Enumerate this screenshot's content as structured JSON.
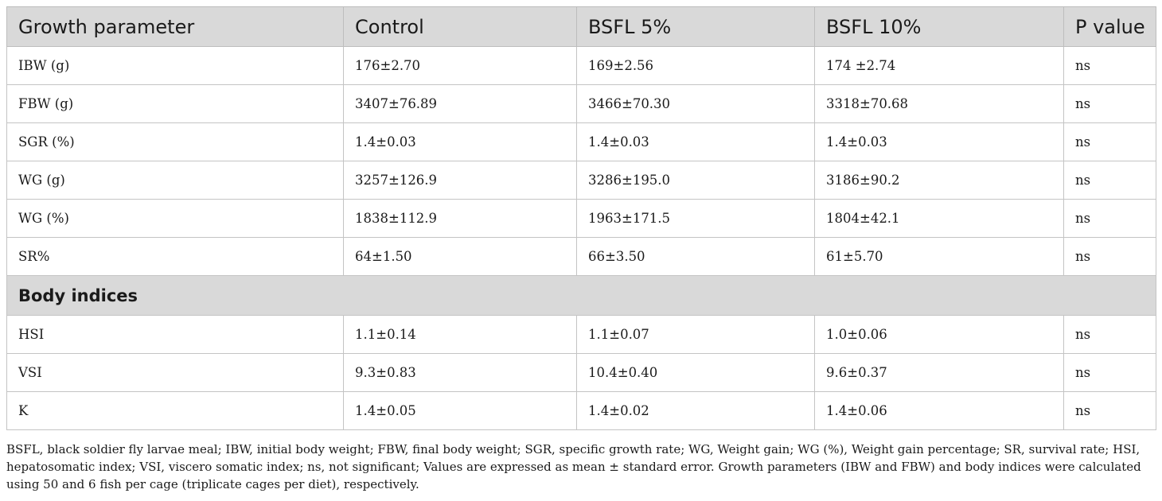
{
  "table": {
    "headers": [
      "Growth parameter",
      "Control",
      "BSFL 5%",
      "BSFL 10%",
      "P value"
    ],
    "growth_rows": [
      [
        "IBW (g)",
        "176±2.70",
        "169±2.56",
        "174 ±2.74",
        "ns"
      ],
      [
        "FBW (g)",
        "3407±76.89",
        "3466±70.30",
        "3318±70.68",
        "ns"
      ],
      [
        "SGR (%)",
        "1.4±0.03",
        "1.4±0.03",
        "1.4±0.03",
        "ns"
      ],
      [
        "WG (g)",
        "3257±126.9",
        "3286±195.0",
        "3186±90.2",
        "ns"
      ],
      [
        "WG (%)",
        "1838±112.9",
        "1963±171.5",
        "1804±42.1",
        "ns"
      ],
      [
        "SR%",
        "64±1.50",
        "66±3.50",
        "61±5.70",
        "ns"
      ]
    ],
    "section_label": "Body indices",
    "body_rows": [
      [
        "HSI",
        "1.1±0.14",
        "1.1±0.07",
        "1.0±0.06",
        "ns"
      ],
      [
        "VSI",
        "9.3±0.83",
        "10.4±0.40",
        "9.6±0.37",
        "ns"
      ],
      [
        "K",
        "1.4±0.05",
        "1.4±0.02",
        "1.4±0.06",
        "ns"
      ]
    ]
  },
  "footnote": "BSFL, black soldier fly larvae meal; IBW, initial body weight; FBW, final body weight; SGR, specific growth rate; WG, Weight gain; WG (%), Weight gain percentage; SR, survival rate; HSI, hepatosomatic index; VSI, viscero somatic index; ns, not significant; Values are expressed as mean ± standard error. Growth parameters (IBW and FBW) and body indices were calculated using 50 and 6 fish per cage (triplicate cages per diet), respectively."
}
